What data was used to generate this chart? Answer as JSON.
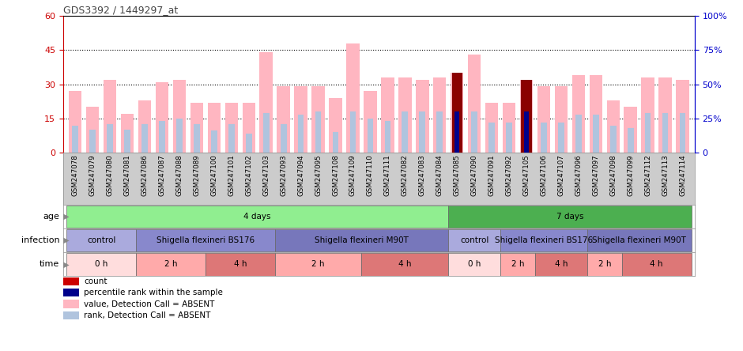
{
  "title": "GDS3392 / 1449297_at",
  "samples": [
    "GSM247078",
    "GSM247079",
    "GSM247080",
    "GSM247081",
    "GSM247086",
    "GSM247087",
    "GSM247088",
    "GSM247089",
    "GSM247100",
    "GSM247101",
    "GSM247102",
    "GSM247103",
    "GSM247093",
    "GSM247094",
    "GSM247095",
    "GSM247108",
    "GSM247109",
    "GSM247110",
    "GSM247111",
    "GSM247082",
    "GSM247083",
    "GSM247084",
    "GSM247085",
    "GSM247090",
    "GSM247091",
    "GSM247092",
    "GSM247105",
    "GSM247106",
    "GSM247107",
    "GSM247096",
    "GSM247097",
    "GSM247098",
    "GSM247099",
    "GSM247112",
    "GSM247113",
    "GSM247114"
  ],
  "value_absent": [
    27,
    20,
    32,
    17,
    23,
    31,
    32,
    22,
    22,
    22,
    22,
    44,
    29,
    29,
    29,
    24,
    48,
    27,
    33,
    33,
    32,
    33,
    35,
    43,
    22,
    22,
    32,
    29,
    29,
    34,
    34,
    23,
    20,
    33,
    33,
    32
  ],
  "rank_absent": [
    20,
    17,
    21,
    17,
    21,
    23,
    25,
    21,
    16,
    21,
    14,
    29,
    21,
    28,
    30,
    15,
    30,
    25,
    23,
    30,
    30,
    30,
    29,
    30,
    22,
    22,
    30,
    22,
    22,
    28,
    28,
    20,
    18,
    29,
    29,
    29
  ],
  "count_present": [
    0,
    0,
    0,
    0,
    0,
    0,
    0,
    0,
    0,
    0,
    0,
    0,
    0,
    0,
    0,
    0,
    0,
    0,
    0,
    0,
    0,
    0,
    35,
    0,
    0,
    0,
    32,
    0,
    0,
    0,
    0,
    0,
    0,
    0,
    0,
    0
  ],
  "rank_present": [
    0,
    0,
    0,
    0,
    0,
    0,
    0,
    0,
    0,
    0,
    0,
    0,
    0,
    0,
    0,
    0,
    0,
    0,
    0,
    0,
    0,
    0,
    30,
    0,
    0,
    0,
    30,
    0,
    0,
    0,
    0,
    0,
    0,
    0,
    0,
    0
  ],
  "ylim_left": [
    0,
    60
  ],
  "ylim_right": [
    0,
    100
  ],
  "yticks_left": [
    0,
    15,
    30,
    45,
    60
  ],
  "yticks_right": [
    0,
    25,
    50,
    75,
    100
  ],
  "color_value_absent": "#ffb6c1",
  "color_rank_absent": "#b0c4de",
  "color_count_present": "#8b0000",
  "color_rank_present": "#00008b",
  "color_axis_left": "#cc0000",
  "color_axis_right": "#0000cc",
  "age_groups": [
    {
      "label": "4 days",
      "start": 0,
      "end": 22,
      "color": "#90ee90"
    },
    {
      "label": "7 days",
      "start": 22,
      "end": 36,
      "color": "#4caf50"
    }
  ],
  "infection_groups": [
    {
      "label": "control",
      "start": 0,
      "end": 4,
      "color": "#aaaadd"
    },
    {
      "label": "Shigella flexineri BS176",
      "start": 4,
      "end": 12,
      "color": "#8888cc"
    },
    {
      "label": "Shigella flexineri M90T",
      "start": 12,
      "end": 22,
      "color": "#7777bb"
    },
    {
      "label": "control",
      "start": 22,
      "end": 25,
      "color": "#aaaadd"
    },
    {
      "label": "Shigella flexineri BS176",
      "start": 25,
      "end": 30,
      "color": "#8888cc"
    },
    {
      "label": "Shigella flexineri M90T",
      "start": 30,
      "end": 36,
      "color": "#7777bb"
    }
  ],
  "time_groups": [
    {
      "label": "0 h",
      "start": 0,
      "end": 4,
      "color": "#ffdddd"
    },
    {
      "label": "2 h",
      "start": 4,
      "end": 8,
      "color": "#ffaaaa"
    },
    {
      "label": "4 h",
      "start": 8,
      "end": 12,
      "color": "#dd7777"
    },
    {
      "label": "2 h",
      "start": 12,
      "end": 17,
      "color": "#ffaaaa"
    },
    {
      "label": "4 h",
      "start": 17,
      "end": 22,
      "color": "#dd7777"
    },
    {
      "label": "0 h",
      "start": 22,
      "end": 25,
      "color": "#ffdddd"
    },
    {
      "label": "2 h",
      "start": 25,
      "end": 27,
      "color": "#ffaaaa"
    },
    {
      "label": "4 h",
      "start": 27,
      "end": 30,
      "color": "#dd7777"
    },
    {
      "label": "2 h",
      "start": 30,
      "end": 32,
      "color": "#ffaaaa"
    },
    {
      "label": "4 h",
      "start": 32,
      "end": 36,
      "color": "#dd7777"
    }
  ],
  "legend_items": [
    {
      "color": "#cc0000",
      "label": "count"
    },
    {
      "color": "#00008b",
      "label": "percentile rank within the sample"
    },
    {
      "color": "#ffb6c1",
      "label": "value, Detection Call = ABSENT"
    },
    {
      "color": "#b0c4de",
      "label": "rank, Detection Call = ABSENT"
    }
  ],
  "row_labels": [
    "age",
    "infection",
    "time"
  ],
  "names_bg": "#cccccc"
}
